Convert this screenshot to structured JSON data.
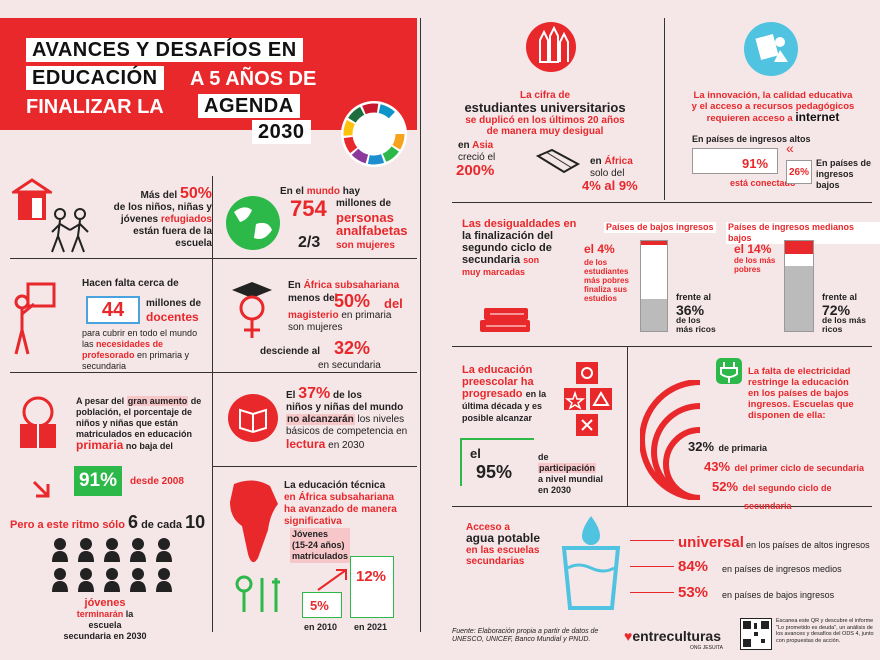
{
  "title": {
    "line1": "AVANCES Y DESAFÍOS EN",
    "line2a": "EDUCACIÓN",
    "line2b": "A 5 AÑOS DE",
    "line3a": "FINALIZAR LA",
    "line3b": "AGENDA",
    "line4": "2030"
  },
  "refugees": {
    "t1": "Más del",
    "pct": "50%",
    "t2": "de los niños, niñas y",
    "t3": "jóvenes",
    "t4": "refugiados",
    "t5": "están fuera de la",
    "t6": "escuela"
  },
  "illiterate": {
    "t1": "En el",
    "t2": "mundo",
    "t3": "hay",
    "num": "754",
    "t4": "millones de",
    "t5": "personas",
    "t6": "analfabetas",
    "frac": "2/3",
    "t7": "son mujeres"
  },
  "teachers": {
    "t1": "Hacen falta cerca de",
    "num": "44",
    "t2": "millones de",
    "t3": "docentes",
    "t4": "para cubrir en todo el mundo",
    "t5": "las",
    "t6": "necesidades de",
    "t7": "profesorado",
    "t8": "en primaria y",
    "t9": "secundaria"
  },
  "africa_teachers": {
    "t1": "En",
    "t2": "África subsahariana",
    "t3": "menos del",
    "pct": "50%",
    "t4": "del",
    "t5": "magisterio",
    "t6": "en primaria",
    "t7": "son mujeres",
    "t8": "desciende al",
    "pct2": "32%",
    "t9": "en secundaria"
  },
  "primary": {
    "t1": "A pesar del",
    "t2": "gran aumento",
    "t3": "de población, el porcentaje",
    "t4": "de niños y niñas que están",
    "t5": "matriculados en educación",
    "t6": "primaria",
    "t7": "no baja del",
    "pct": "91%",
    "t8": "desde 2008",
    "t9": "Pero a este ritmo sólo",
    "n1": "6",
    "t10": "de cada",
    "n2": "10",
    "t11": "jóvenes",
    "t12": "terminarán",
    "t13": "la escuela",
    "t14": "secundaria en 2030"
  },
  "reading": {
    "t1": "El",
    "pct": "37%",
    "t2": "de los",
    "t3": "niños y niñas del mundo",
    "t4": "no alcanzarán",
    "t5": "los niveles",
    "t6": "básicos de competencia",
    "t7": "en",
    "t8": "lectura",
    "t9": "en 2030"
  },
  "technical": {
    "t1": "La",
    "t2": "educación técnica",
    "t3": "en África subsahariana",
    "t4": "ha",
    "t5": "avanzado de manera",
    "t6": "significativa",
    "t7": "Jóvenes",
    "t8": "(15-24 años)",
    "t9": "matriculados",
    "v1": "5%",
    "y1": "en 2010",
    "v2": "12%",
    "y2": "en 2021"
  },
  "university": {
    "t1": "La cifra de",
    "t2": "estudiantes universitarios",
    "t3": "se duplicó en los últimos 20 años",
    "t4": "de manera muy desigual",
    "t5": "en",
    "t6": "Asia",
    "t7": "creció el",
    "pct": "200%",
    "t8": "en",
    "t9": "África",
    "t10": "solo del",
    "pct2": "4% al 9%"
  },
  "internet": {
    "t1": "La innovación, la calidad educativa",
    "t2": "y el acceso a recursos pedagógicos",
    "t3": "requieren acceso a",
    "t4": "internet",
    "t5": "En países de ingresos altos",
    "pct": "91%",
    "t6": "está conectado",
    "pct2": "26%",
    "t7": "En países de",
    "t8": "ingresos",
    "t9": "bajos"
  },
  "secondary": {
    "t1": "Las desigualdades en",
    "t2": "la finalización del",
    "t3": "segundo ciclo de",
    "t4": "secundaria",
    "t5": "son",
    "t6": "muy marcadas",
    "low_title": "Países de bajos ingresos",
    "mid_title": "Países de ingresos medianos bajos",
    "low_poor": "el 4%",
    "low_poor_t": "de los estudiantes más pobres finaliza sus estudios",
    "low_rich_t1": "frente al",
    "low_rich": "36%",
    "low_rich_t2": "de los más ricos",
    "mid_poor": "el 14%",
    "mid_poor_t": "de los más pobres",
    "mid_rich_t1": "frente al",
    "mid_rich": "72%",
    "mid_rich_t2": "de los más ricos"
  },
  "preschool": {
    "t1": "La educación",
    "t2": "preescolar",
    "t3": "ha",
    "t4": "progresado",
    "t5": "en la",
    "t6": "última década y es",
    "t7": "posible alcanzar",
    "t8": "el",
    "pct": "95%",
    "t9": "de",
    "t10": "participación",
    "t11": "a nivel mundial",
    "t12": "en 2030"
  },
  "electricity": {
    "t1": "La falta de",
    "t2": "electricidad",
    "t3": "restringe la educación",
    "t4": "en los países de bajos",
    "t5": "ingresos. Escuelas que",
    "t6": "disponen de ella:",
    "p1": "32%",
    "l1": "de primaria",
    "p2": "43%",
    "l2": "del primer ciclo de secundaria",
    "p3": "52%",
    "l3": "del segundo ciclo de",
    "l3b": "secundaria"
  },
  "water": {
    "t1": "Acceso a",
    "t2": "agua potable",
    "t3": "en las escuelas",
    "t4": "secundarias",
    "w1": "universal",
    "l1": "en los países de altos ingresos",
    "w2": "84%",
    "l2": "en países de ingresos medios",
    "w3": "53%",
    "l3": "en países de bajos ingresos"
  },
  "footer": {
    "source": "Fuente: Elaboración propia a partir de datos de UNESCO, UNICEF, Banco Mundial y PNUD.",
    "brand": "entreculturas",
    "brand_sub": "ONG JESUITA",
    "qr_text": "Escanea este QR y descubre el informe \"Lo prometido es deuda\", un análisis de los avances y desafíos del ODS 4, junto con propuestas de acción."
  },
  "colors": {
    "accent": "#e8282b",
    "bg": "#f5e6e8",
    "green": "#2db84a"
  }
}
